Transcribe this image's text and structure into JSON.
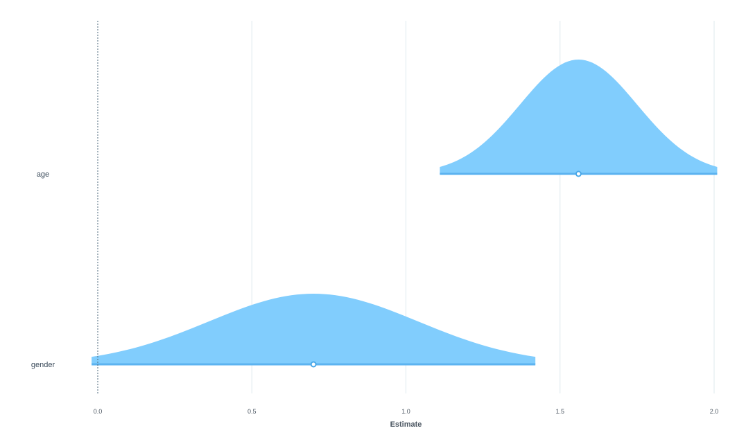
{
  "chart_data": {
    "type": "ridgeline",
    "xlabel": "Estimate",
    "xlim": [
      0.0,
      2.0
    ],
    "x_ticks": [
      "0.0",
      "0.5",
      "1.0",
      "1.5",
      "2.0"
    ],
    "reference_line_x": 0.0,
    "grid": "vertical",
    "colors": {
      "fill": "#81cdfd",
      "line": "#5cb3f0",
      "point_stroke": "#4aa8e8",
      "grid": "#dde8ee",
      "ref_line": "#4a6678"
    },
    "series": [
      {
        "category": "age",
        "estimate": 1.56,
        "ci_low": 1.11,
        "ci_high": 2.01,
        "sd": 0.19
      },
      {
        "category": "gender",
        "estimate": 0.7,
        "ci_low": -0.02,
        "ci_high": 1.42,
        "sd": 0.34
      }
    ]
  }
}
